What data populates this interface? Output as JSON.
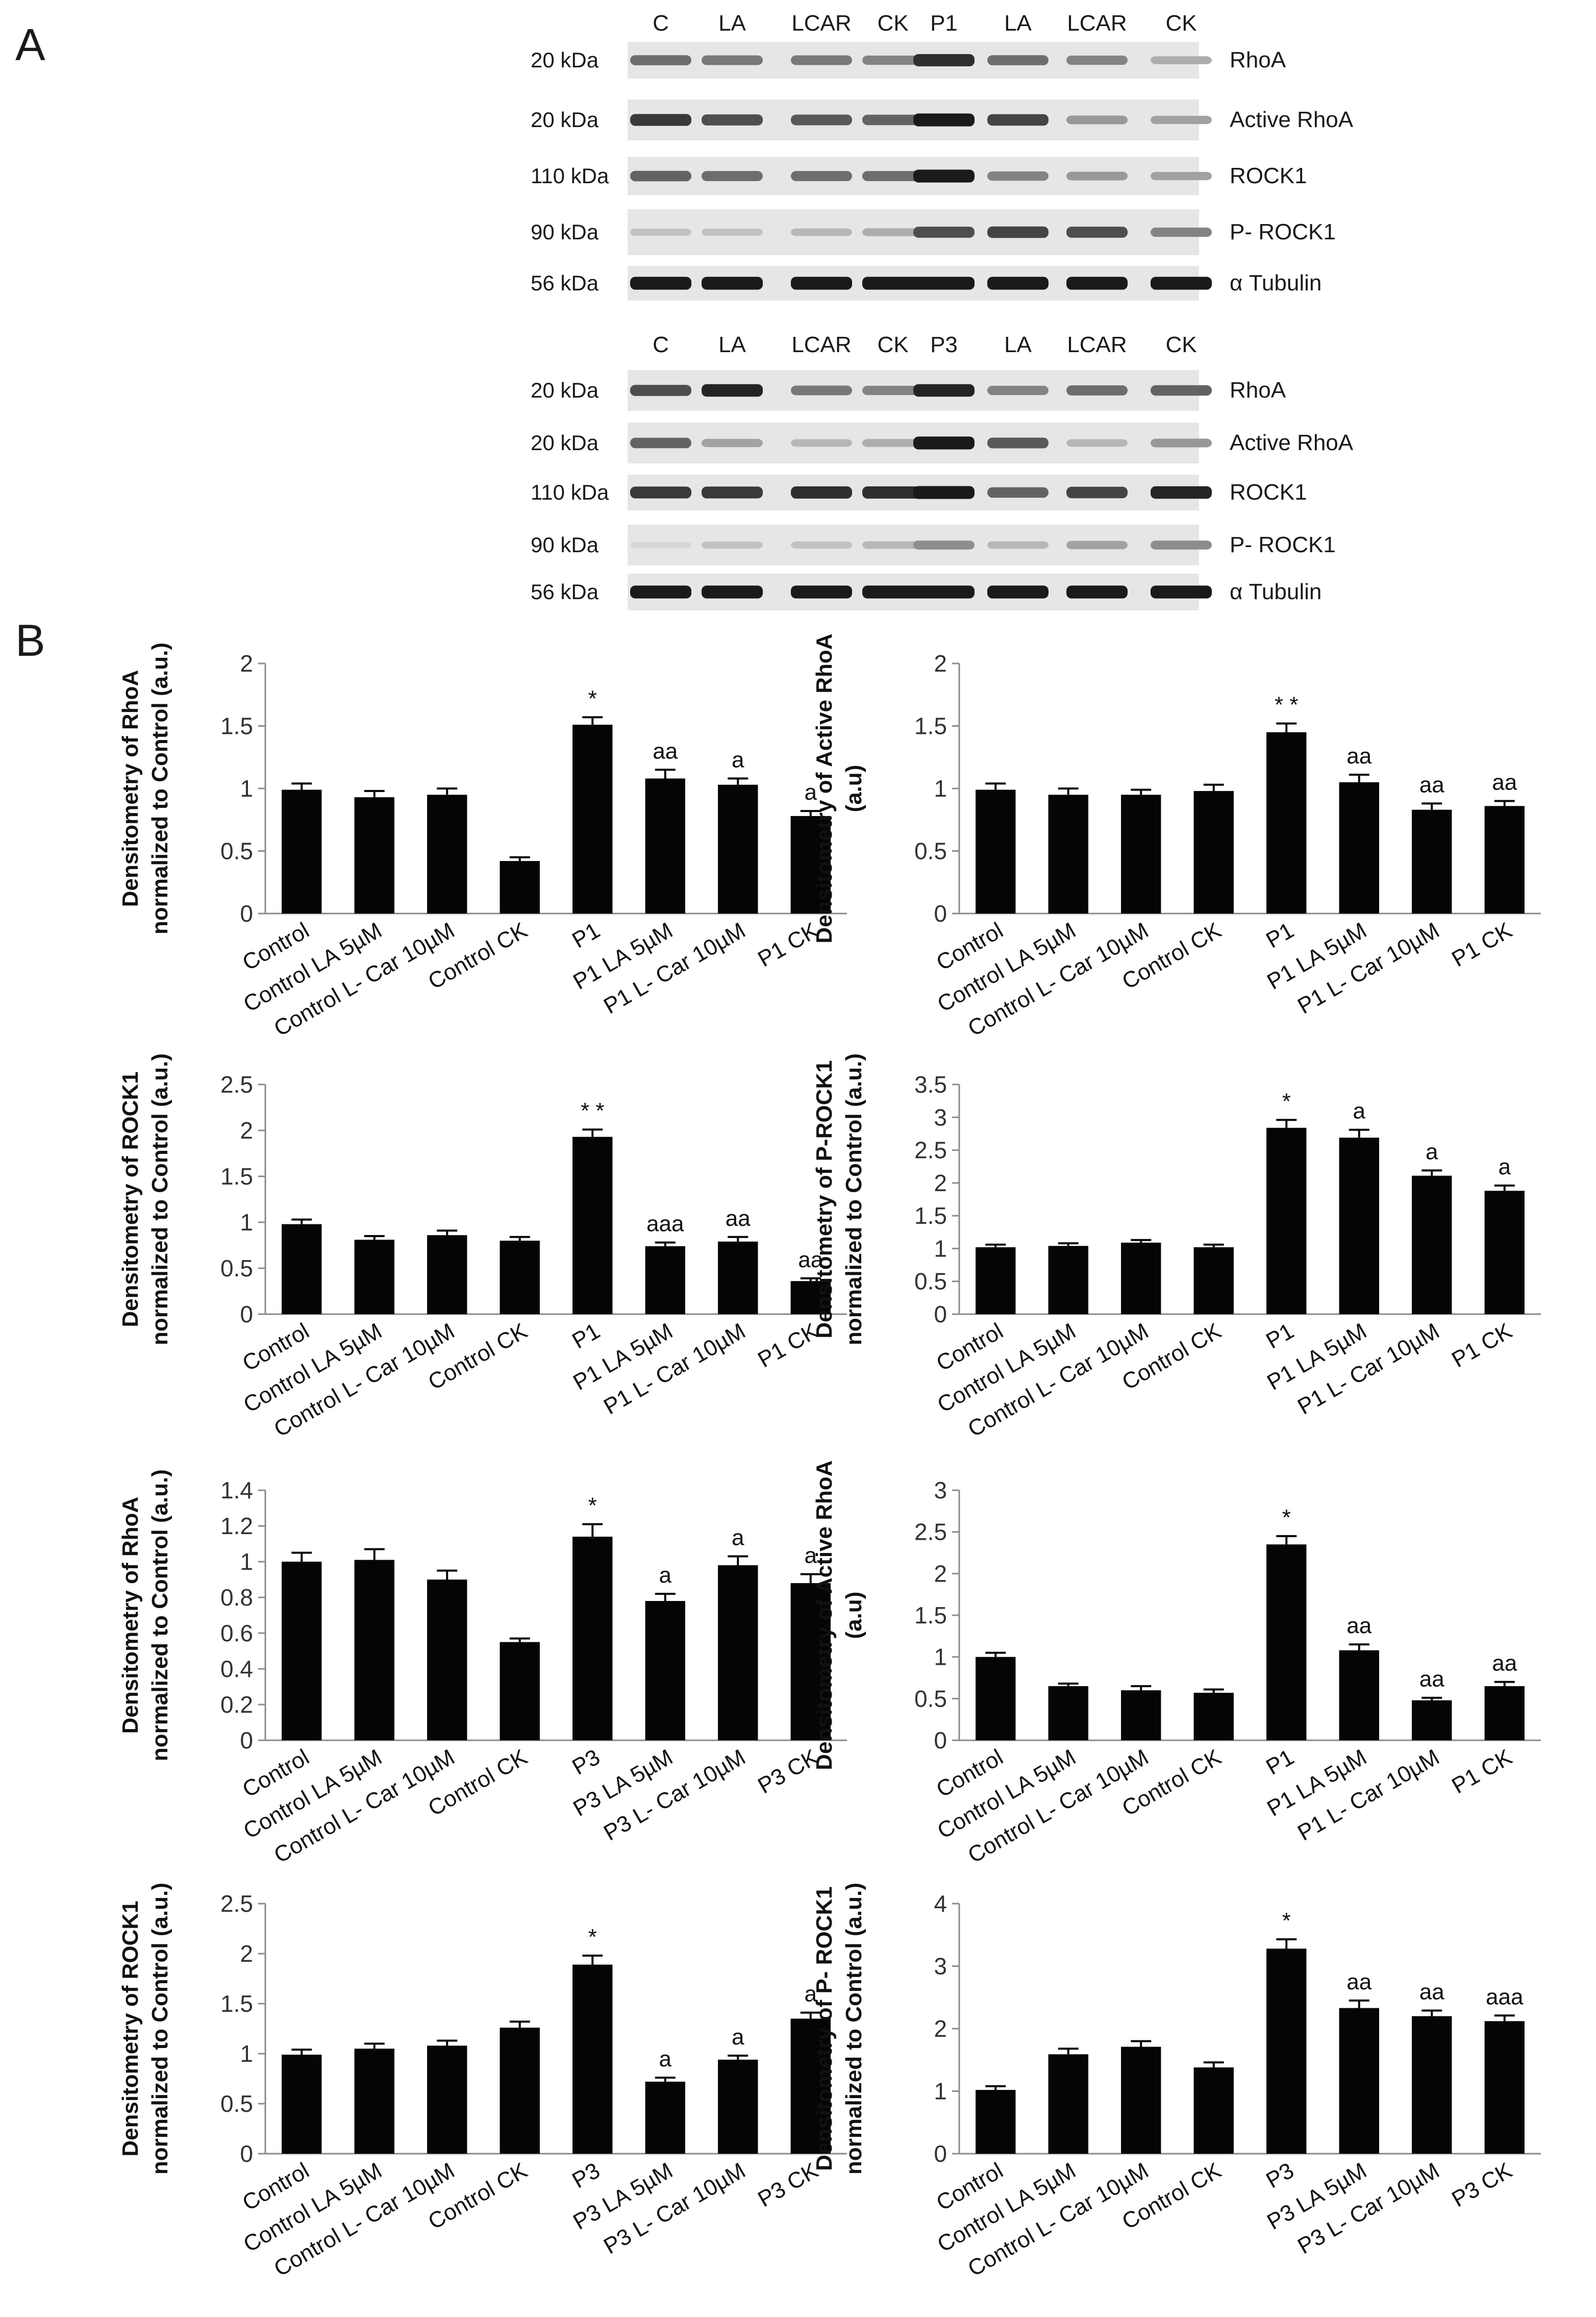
{
  "panel_labels": {
    "a": "A",
    "b": "B"
  },
  "blots": [
    {
      "lanes": [
        "C",
        "LA",
        "LCAR",
        "CK",
        "P1",
        "LA",
        "LCAR",
        "CK"
      ],
      "rows": [
        {
          "kda": "20 kDa",
          "protein": "RhoA",
          "intensity": [
            0.55,
            0.5,
            0.5,
            0.45,
            0.85,
            0.55,
            0.45,
            0.25
          ]
        },
        {
          "kda": "20 kDa",
          "protein": "Active RhoA",
          "intensity": [
            0.8,
            0.7,
            0.65,
            0.6,
            0.95,
            0.75,
            0.35,
            0.3
          ]
        },
        {
          "kda": "110 kDa",
          "protein": "ROCK1",
          "intensity": [
            0.6,
            0.55,
            0.55,
            0.55,
            0.95,
            0.45,
            0.35,
            0.3
          ]
        },
        {
          "kda": "90 kDa",
          "protein": "P- ROCK1",
          "intensity": [
            0.15,
            0.15,
            0.2,
            0.25,
            0.7,
            0.75,
            0.7,
            0.45
          ]
        },
        {
          "kda": "56 kDa",
          "protein": "α Tubulin",
          "intensity": [
            0.95,
            0.95,
            0.95,
            0.95,
            0.95,
            0.95,
            0.95,
            0.95
          ]
        }
      ]
    },
    {
      "lanes": [
        "C",
        "LA",
        "LCAR",
        "CK",
        "P3",
        "LA",
        "LCAR",
        "CK"
      ],
      "rows": [
        {
          "kda": "20 kDa",
          "protein": "RhoA",
          "intensity": [
            0.7,
            0.9,
            0.5,
            0.45,
            0.9,
            0.45,
            0.55,
            0.6
          ]
        },
        {
          "kda": "20 kDa",
          "protein": "Active RhoA",
          "intensity": [
            0.6,
            0.3,
            0.2,
            0.25,
            0.95,
            0.65,
            0.2,
            0.35
          ]
        },
        {
          "kda": "110 kDa",
          "protein": "ROCK1",
          "intensity": [
            0.8,
            0.8,
            0.85,
            0.85,
            0.95,
            0.6,
            0.75,
            0.9
          ]
        },
        {
          "kda": "90 kDa",
          "protein": "P- ROCK1",
          "intensity": [
            0.05,
            0.15,
            0.15,
            0.2,
            0.4,
            0.2,
            0.3,
            0.4
          ]
        },
        {
          "kda": "56 kDa",
          "protein": "α Tubulin",
          "intensity": [
            0.95,
            0.95,
            0.95,
            0.95,
            0.95,
            0.95,
            0.95,
            0.95
          ]
        }
      ]
    }
  ],
  "chart_data": [
    {
      "type": "bar",
      "title": "",
      "xlabel": "",
      "ylabel": [
        "Densitometry of RhoA",
        "normalized to Control (a.u.)"
      ],
      "ylim": [
        0,
        2
      ],
      "yticks": [
        "0",
        "0.5",
        "1",
        "1.5",
        "2"
      ],
      "categories": [
        "Control",
        "Control LA 5µM",
        "Control  L- Car 10µM",
        "Control CK",
        "P1",
        "P1 LA 5µM",
        "P1 L- Car 10µM",
        "P1 CK"
      ],
      "values": [
        0.99,
        0.93,
        0.95,
        0.42,
        1.51,
        1.08,
        1.03,
        0.78
      ],
      "errors": [
        0.05,
        0.05,
        0.05,
        0.03,
        0.06,
        0.07,
        0.05,
        0.04
      ],
      "annotations": [
        "",
        "",
        "",
        "",
        "*",
        "aa",
        "a",
        "a"
      ]
    },
    {
      "type": "bar",
      "title": "",
      "xlabel": "",
      "ylabel": [
        "Densitometry of Active RhoA",
        "(a.u)"
      ],
      "ylim": [
        0,
        2
      ],
      "yticks": [
        "0",
        "0.5",
        "1",
        "1.5",
        "2"
      ],
      "categories": [
        "Control",
        "Control LA 5µM",
        "Control  L- Car 10µM",
        "Control CK",
        "P1",
        "P1 LA 5µM",
        "P1 L- Car 10µM",
        "P1 CK"
      ],
      "values": [
        0.99,
        0.95,
        0.95,
        0.98,
        1.45,
        1.05,
        0.83,
        0.86
      ],
      "errors": [
        0.05,
        0.05,
        0.04,
        0.05,
        0.07,
        0.06,
        0.05,
        0.04
      ],
      "annotations": [
        "",
        "",
        "",
        "",
        "* *",
        "aa",
        "aa",
        "aa"
      ]
    },
    {
      "type": "bar",
      "title": "",
      "xlabel": "",
      "ylabel": [
        "Densitometry of ROCK1",
        "normalized to Control (a.u.)"
      ],
      "ylim": [
        0,
        2.5
      ],
      "yticks": [
        "0",
        "0.5",
        "1",
        "1.5",
        "2",
        "2.5"
      ],
      "categories": [
        "Control",
        "Control LA 5µM",
        "Control  L- Car 10µM",
        "Control CK",
        "P1",
        "P1 LA 5µM",
        "P1 L- Car 10µM",
        "P1 CK"
      ],
      "values": [
        0.98,
        0.81,
        0.86,
        0.8,
        1.93,
        0.74,
        0.79,
        0.36
      ],
      "errors": [
        0.05,
        0.04,
        0.05,
        0.04,
        0.08,
        0.04,
        0.05,
        0.03
      ],
      "annotations": [
        "",
        "",
        "",
        "",
        "* *",
        "aaa",
        "aa",
        "aa"
      ]
    },
    {
      "type": "bar",
      "title": "",
      "xlabel": "",
      "ylabel": [
        "Densitometry of P-ROCK1",
        "normalized to Control (a.u.)"
      ],
      "ylim": [
        0,
        3.5
      ],
      "yticks": [
        "0",
        "0.5",
        "1",
        "1.5",
        "2",
        "2.5",
        "3",
        "3.5"
      ],
      "categories": [
        "Control",
        "Control LA 5µM",
        "Control  L- Car 10µM",
        "Control CK",
        "P1",
        "P1 LA 5µM",
        "P1 L- Car 10µM",
        "P1 CK"
      ],
      "values": [
        1.02,
        1.04,
        1.09,
        1.02,
        2.84,
        2.69,
        2.11,
        1.88
      ],
      "errors": [
        0.04,
        0.04,
        0.04,
        0.04,
        0.12,
        0.12,
        0.08,
        0.08
      ],
      "annotations": [
        "",
        "",
        "",
        "",
        "*",
        "a",
        "a",
        "a"
      ]
    },
    {
      "type": "bar",
      "title": "",
      "xlabel": "",
      "ylabel": [
        "Densitometry of RhoA",
        "normalized to Control (a.u.)"
      ],
      "ylim": [
        0,
        1.4
      ],
      "yticks": [
        "0",
        "0.2",
        "0.4",
        "0.6",
        "0.8",
        "1",
        "1.2",
        "1.4"
      ],
      "categories": [
        "Control",
        "Control LA 5µM",
        "Control  L- Car 10µM",
        "Control CK",
        "P3",
        "P3 LA 5µM",
        "P3 L- Car 10µM",
        "P3 CK"
      ],
      "values": [
        1.0,
        1.01,
        0.9,
        0.55,
        1.14,
        0.78,
        0.98,
        0.88
      ],
      "errors": [
        0.05,
        0.06,
        0.05,
        0.02,
        0.07,
        0.04,
        0.05,
        0.05
      ],
      "annotations": [
        "",
        "",
        "",
        "",
        "*",
        "a",
        "a",
        "a"
      ]
    },
    {
      "type": "bar",
      "title": "",
      "xlabel": "",
      "ylabel": [
        "Densitometry of Active RhoA",
        "(a.u)"
      ],
      "ylim": [
        0,
        3
      ],
      "yticks": [
        "0",
        "0.5",
        "1",
        "1.5",
        "2",
        "2.5",
        "3"
      ],
      "categories": [
        "Control",
        "Control LA 5µM",
        "Control  L- Car 10µM",
        "Control CK",
        "P1",
        "P1 LA 5µM",
        "P1 L- Car 10µM",
        "P1 CK"
      ],
      "values": [
        1.0,
        0.65,
        0.6,
        0.57,
        2.35,
        1.08,
        0.48,
        0.65
      ],
      "errors": [
        0.05,
        0.03,
        0.05,
        0.04,
        0.1,
        0.07,
        0.03,
        0.05
      ],
      "annotations": [
        "",
        "",
        "",
        "",
        "*",
        "aa",
        "aa",
        "aa"
      ]
    },
    {
      "type": "bar",
      "title": "",
      "xlabel": "",
      "ylabel": [
        "Densitometry of ROCK1",
        "normalized to Control (a.u.)"
      ],
      "ylim": [
        0,
        2.5
      ],
      "yticks": [
        "0",
        "0.5",
        "1",
        "1.5",
        "2",
        "2.5"
      ],
      "categories": [
        "Control",
        "Control LA 5µM",
        "Control  L- Car 10µM",
        "Control CK",
        "P3",
        "P3 LA 5µM",
        "P3 L- Car 10µM",
        "P3 CK"
      ],
      "values": [
        0.99,
        1.05,
        1.08,
        1.26,
        1.89,
        0.72,
        0.94,
        1.35
      ],
      "errors": [
        0.05,
        0.05,
        0.05,
        0.06,
        0.09,
        0.04,
        0.04,
        0.06
      ],
      "annotations": [
        "",
        "",
        "",
        "",
        "*",
        "a",
        "a",
        "a"
      ]
    },
    {
      "type": "bar",
      "title": "",
      "xlabel": "",
      "ylabel": [
        "Densitometry of P- ROCK1",
        "normalized to Control (a.u.)"
      ],
      "ylim": [
        0,
        4
      ],
      "yticks": [
        "0",
        "1",
        "2",
        "3",
        "4"
      ],
      "categories": [
        "Control",
        "Control LA 5µM",
        "Control  L- Car 10µM",
        "Control CK",
        "P3",
        "P3 LA 5µM",
        "P3 L- Car 10µM",
        "P3 CK"
      ],
      "values": [
        1.02,
        1.59,
        1.71,
        1.38,
        3.28,
        2.33,
        2.2,
        2.12
      ],
      "errors": [
        0.06,
        0.09,
        0.09,
        0.08,
        0.15,
        0.12,
        0.09,
        0.09
      ],
      "annotations": [
        "",
        "",
        "",
        "",
        "*",
        "aa",
        "aa",
        "aaa"
      ]
    }
  ]
}
